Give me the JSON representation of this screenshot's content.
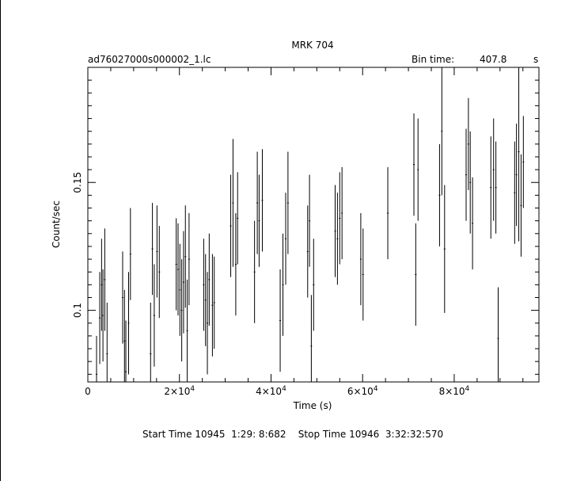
{
  "chart_data": {
    "type": "scatter",
    "title": "MRK 704",
    "file_label": "ad76027000s000002_1.lc",
    "bin_time_label": "Bin time:",
    "bin_time_value": "407.8",
    "bin_time_unit": "s",
    "xlabel": "Time (s)",
    "ylabel": "Count/sec",
    "xlim": [
      0,
      98500
    ],
    "ylim": [
      0.072,
      0.195
    ],
    "x_ticks": [
      {
        "value": 0,
        "base": "0",
        "exp": ""
      },
      {
        "value": 20000,
        "base": "2×10",
        "exp": "4"
      },
      {
        "value": 40000,
        "base": "4×10",
        "exp": "4"
      },
      {
        "value": 60000,
        "base": "6×10",
        "exp": "4"
      },
      {
        "value": 80000,
        "base": "8×10",
        "exp": "4"
      }
    ],
    "y_ticks": [
      {
        "value": 0.1,
        "label": "0.1"
      },
      {
        "value": 0.15,
        "label": "0.15"
      }
    ],
    "grid": false,
    "points": [
      [
        1900,
        0.075,
        0.015
      ],
      [
        2600,
        0.097,
        0.018
      ],
      [
        3000,
        0.11,
        0.018
      ],
      [
        3300,
        0.098,
        0.018
      ],
      [
        3700,
        0.112,
        0.02
      ],
      [
        4200,
        0.083,
        0.02
      ],
      [
        7600,
        0.105,
        0.018
      ],
      [
        8000,
        0.088,
        0.02
      ],
      [
        8300,
        0.076,
        0.02
      ],
      [
        8900,
        0.095,
        0.02
      ],
      [
        9300,
        0.122,
        0.018
      ],
      [
        13700,
        0.083,
        0.02
      ],
      [
        14100,
        0.124,
        0.018
      ],
      [
        14500,
        0.098,
        0.02
      ],
      [
        15100,
        0.123,
        0.018
      ],
      [
        15600,
        0.115,
        0.018
      ],
      [
        19300,
        0.118,
        0.018
      ],
      [
        19700,
        0.116,
        0.018
      ],
      [
        20100,
        0.108,
        0.018
      ],
      [
        20500,
        0.1,
        0.02
      ],
      [
        20900,
        0.111,
        0.02
      ],
      [
        21300,
        0.121,
        0.02
      ],
      [
        21700,
        0.092,
        0.02
      ],
      [
        22100,
        0.12,
        0.018
      ],
      [
        25300,
        0.11,
        0.018
      ],
      [
        25700,
        0.104,
        0.018
      ],
      [
        26100,
        0.095,
        0.02
      ],
      [
        26500,
        0.112,
        0.018
      ],
      [
        27200,
        0.102,
        0.02
      ],
      [
        27600,
        0.103,
        0.018
      ],
      [
        31200,
        0.133,
        0.02
      ],
      [
        31700,
        0.142,
        0.025
      ],
      [
        32300,
        0.118,
        0.02
      ],
      [
        32700,
        0.136,
        0.018
      ],
      [
        36400,
        0.115,
        0.02
      ],
      [
        37000,
        0.142,
        0.02
      ],
      [
        37400,
        0.135,
        0.018
      ],
      [
        38100,
        0.143,
        0.02
      ],
      [
        42000,
        0.096,
        0.02
      ],
      [
        42600,
        0.11,
        0.02
      ],
      [
        43200,
        0.128,
        0.018
      ],
      [
        43700,
        0.142,
        0.02
      ],
      [
        48000,
        0.123,
        0.018
      ],
      [
        48400,
        0.135,
        0.018
      ],
      [
        48800,
        0.086,
        0.02
      ],
      [
        49300,
        0.11,
        0.018
      ],
      [
        54000,
        0.131,
        0.018
      ],
      [
        54500,
        0.128,
        0.018
      ],
      [
        55000,
        0.136,
        0.018
      ],
      [
        55500,
        0.138,
        0.018
      ],
      [
        59600,
        0.12,
        0.018
      ],
      [
        60100,
        0.114,
        0.018
      ],
      [
        65500,
        0.138,
        0.018
      ],
      [
        71200,
        0.157,
        0.02
      ],
      [
        71600,
        0.114,
        0.02
      ],
      [
        72100,
        0.155,
        0.02
      ],
      [
        76800,
        0.145,
        0.02
      ],
      [
        77300,
        0.17,
        0.025
      ],
      [
        77900,
        0.124,
        0.025
      ],
      [
        82600,
        0.153,
        0.018
      ],
      [
        83100,
        0.165,
        0.018
      ],
      [
        83500,
        0.15,
        0.02
      ],
      [
        84000,
        0.134,
        0.018
      ],
      [
        88000,
        0.148,
        0.02
      ],
      [
        88600,
        0.155,
        0.02
      ],
      [
        89100,
        0.148,
        0.018
      ],
      [
        89600,
        0.089,
        0.02
      ],
      [
        93200,
        0.146,
        0.02
      ],
      [
        93600,
        0.153,
        0.02
      ],
      [
        94100,
        0.162,
        0.035
      ],
      [
        94600,
        0.141,
        0.02
      ],
      [
        95100,
        0.158,
        0.018
      ]
    ]
  },
  "footer": {
    "start_label": "Start Time",
    "start_value": "10945  1:29: 8:682",
    "stop_label": "Stop Time",
    "stop_value": "10946  3:32:32:570"
  }
}
